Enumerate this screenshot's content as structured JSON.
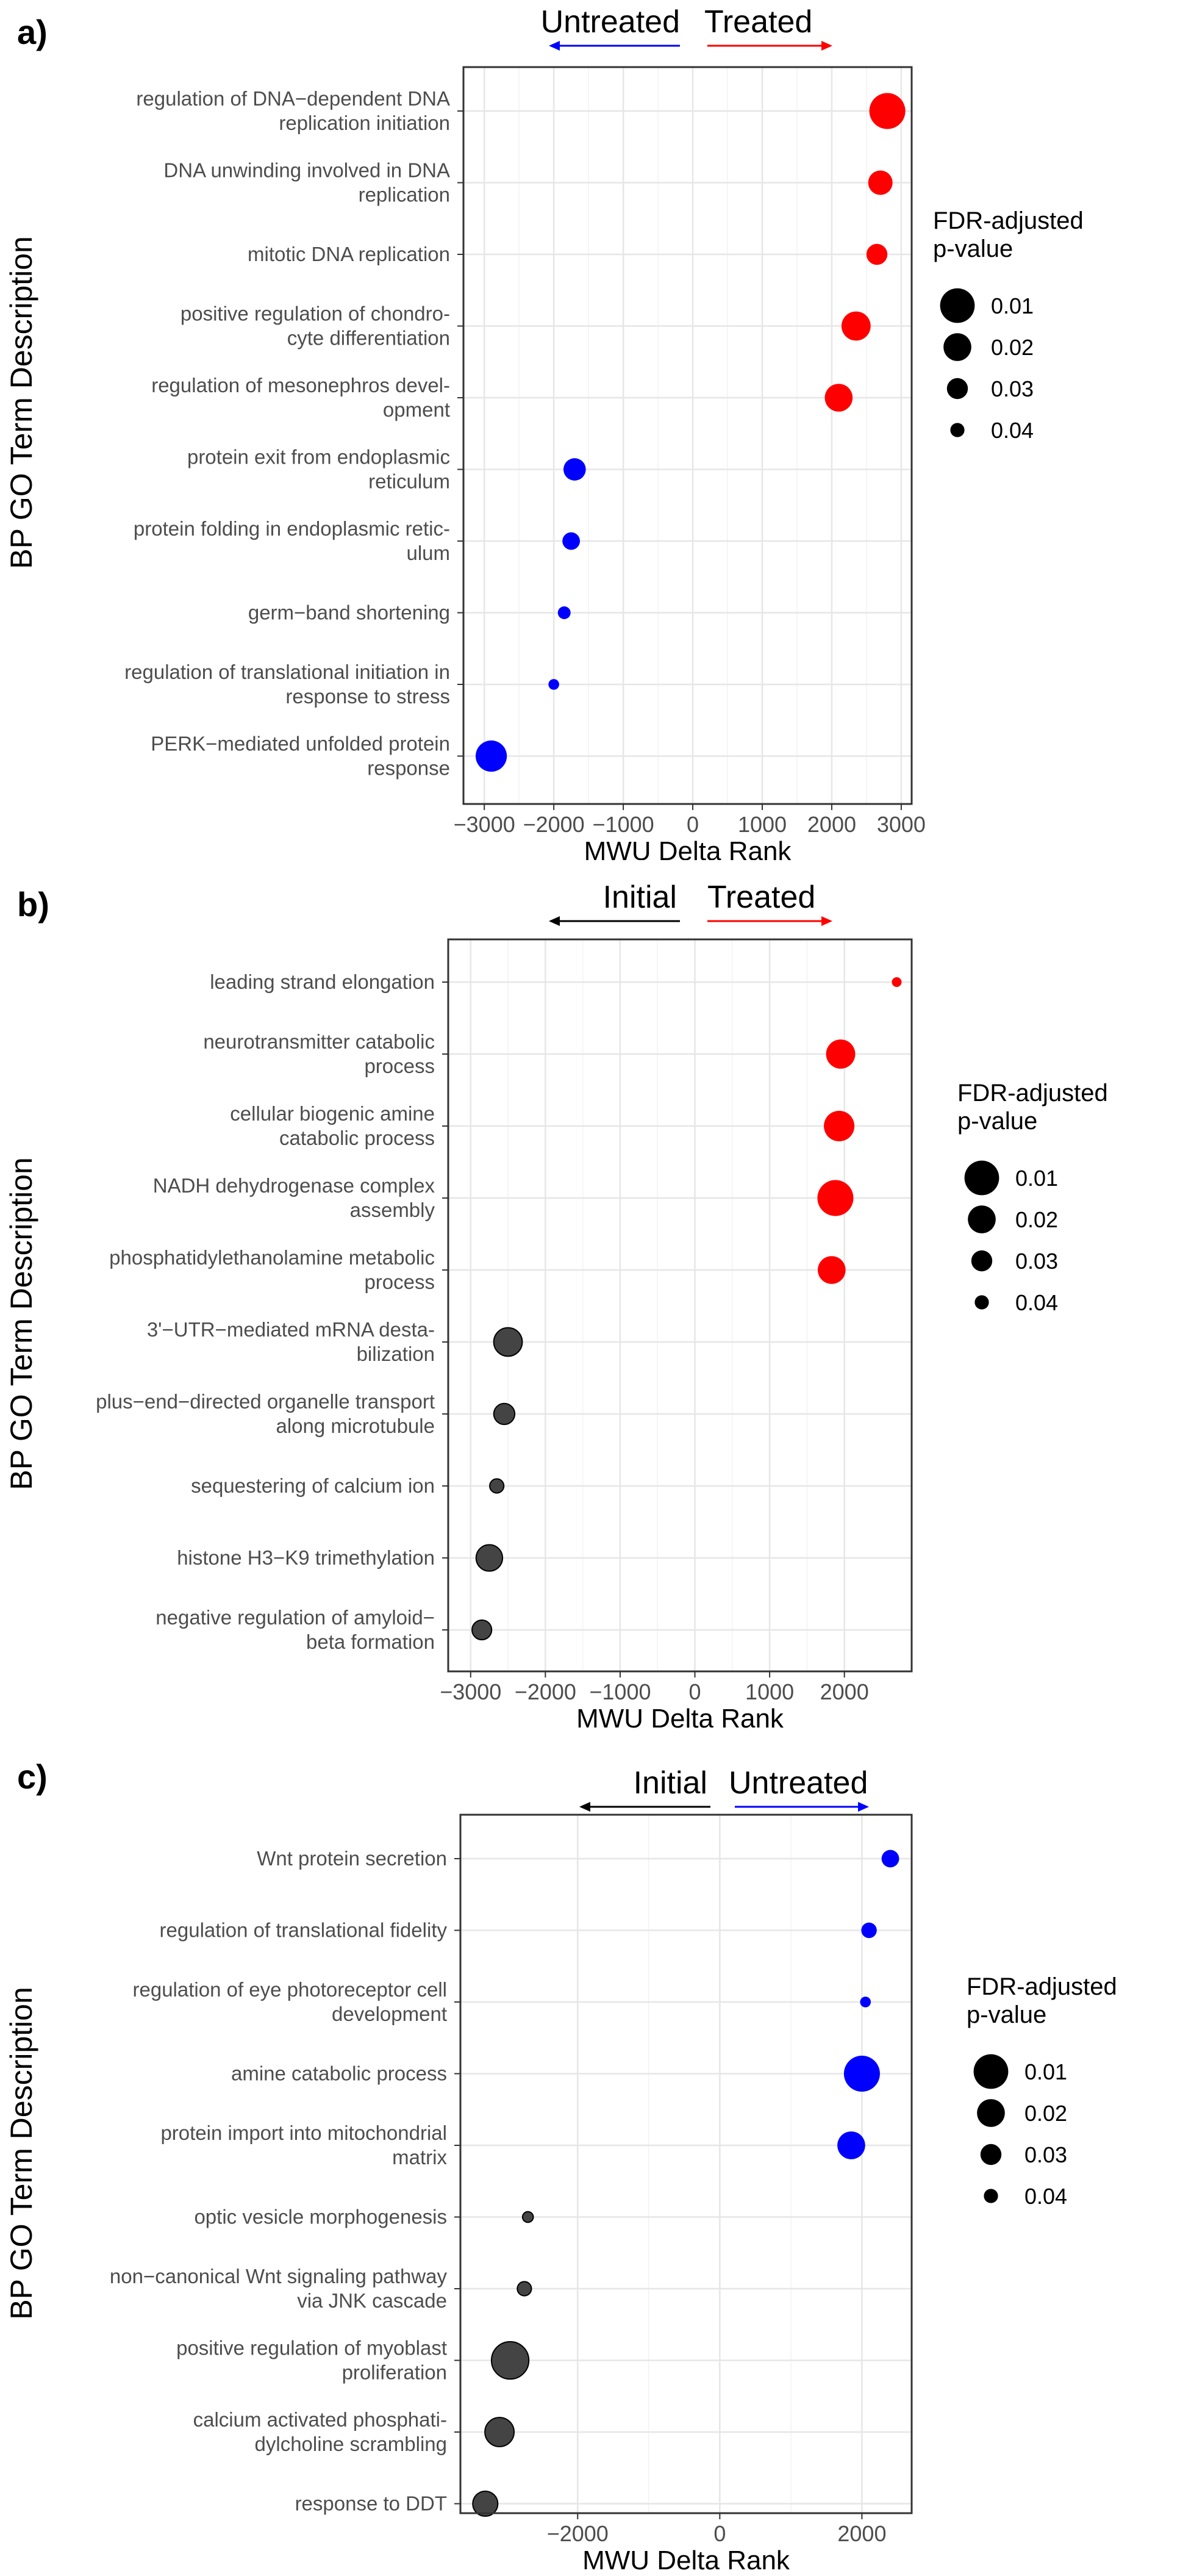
{
  "chart_data": [
    {
      "panel": "a)",
      "type": "scatter",
      "ylabel": "BP GO Term Description",
      "xlabel": "MWU Delta Rank",
      "direction_left": "Untreated",
      "direction_right": "Treated",
      "xlim": [
        -3300,
        3150
      ],
      "xticks": [
        -3000,
        -2000,
        -1000,
        0,
        1000,
        2000,
        3000
      ],
      "xtick_labels": [
        "−3000",
        "−2000",
        "−1000",
        "0",
        "1000",
        "2000",
        "3000"
      ],
      "legend": {
        "title_lines": [
          "FDR-adjusted",
          "p-value"
        ],
        "values": [
          "0.01",
          "0.02",
          "0.03",
          "0.04"
        ]
      },
      "grid": true,
      "points": [
        {
          "term": [
            "regulation of DNA−dependent DNA",
            "replication initiation"
          ],
          "x": 2800,
          "p": 0.008,
          "color": "#ff0000"
        },
        {
          "term": [
            "DNA unwinding involved in DNA",
            "replication"
          ],
          "x": 2700,
          "p": 0.025,
          "color": "#ff0000"
        },
        {
          "term": [
            "mitotic DNA replication"
          ],
          "x": 2650,
          "p": 0.03,
          "color": "#ff0000"
        },
        {
          "term": [
            "positive regulation of chondro-",
            "cyte differentiation"
          ],
          "x": 2350,
          "p": 0.018,
          "color": "#ff0000"
        },
        {
          "term": [
            "regulation of mesonephros devel-",
            "opment"
          ],
          "x": 2100,
          "p": 0.02,
          "color": "#ff0000"
        },
        {
          "term": [
            "protein exit from endoplasmic",
            "reticulum"
          ],
          "x": -1700,
          "p": 0.028,
          "color": "#0000ff"
        },
        {
          "term": [
            "protein folding in endoplasmic retic-",
            "ulum"
          ],
          "x": -1750,
          "p": 0.035,
          "color": "#0000ff"
        },
        {
          "term": [
            "germ−band shortening"
          ],
          "x": -1850,
          "p": 0.042,
          "color": "#0000ff"
        },
        {
          "term": [
            "regulation of translational initiation in",
            "response to stress"
          ],
          "x": -2000,
          "p": 0.045,
          "color": "#0000ff"
        },
        {
          "term": [
            "PERK−mediated unfolded protein",
            "response"
          ],
          "x": -2900,
          "p": 0.015,
          "color": "#0000ff"
        }
      ]
    },
    {
      "panel": "b)",
      "type": "scatter",
      "ylabel": "BP GO Term Description",
      "xlabel": "MWU Delta Rank",
      "direction_left": "Initial",
      "direction_right": "Treated",
      "xlim": [
        -3300,
        2900
      ],
      "xticks": [
        -3000,
        -2000,
        -1000,
        0,
        1000,
        2000
      ],
      "xtick_labels": [
        "−3000",
        "−2000",
        "−1000",
        "0",
        "1000",
        "2000"
      ],
      "legend": {
        "title_lines": [
          "FDR-adjusted",
          "p-value"
        ],
        "values": [
          "0.01",
          "0.02",
          "0.03",
          "0.04"
        ]
      },
      "grid": true,
      "points": [
        {
          "term": [
            "leading strand elongation"
          ],
          "x": 2700,
          "p": 0.048,
          "color": "#ff0000"
        },
        {
          "term": [
            "neurotransmitter catabolic",
            "process"
          ],
          "x": 1950,
          "p": 0.018,
          "color": "#ff0000"
        },
        {
          "term": [
            "cellular biogenic amine",
            "catabolic process"
          ],
          "x": 1930,
          "p": 0.016,
          "color": "#ff0000"
        },
        {
          "term": [
            "NADH dehydrogenase complex",
            "assembly"
          ],
          "x": 1880,
          "p": 0.008,
          "color": "#ff0000"
        },
        {
          "term": [
            "phosphatidylethanolamine metabolic",
            "process"
          ],
          "x": 1830,
          "p": 0.02,
          "color": "#ff0000"
        },
        {
          "term": [
            "3'−UTR−mediated mRNA desta-",
            "bilization"
          ],
          "x": -2500,
          "p": 0.019,
          "color": "#444444"
        },
        {
          "term": [
            "plus−end−directed organelle transport",
            "along microtubule"
          ],
          "x": -2550,
          "p": 0.03,
          "color": "#444444"
        },
        {
          "term": [
            "sequestering of calcium ion"
          ],
          "x": -2650,
          "p": 0.04,
          "color": "#444444"
        },
        {
          "term": [
            "histone H3−K9 trimethylation"
          ],
          "x": -2750,
          "p": 0.022,
          "color": "#444444"
        },
        {
          "term": [
            "negative regulation of amyloid−",
            "beta formation"
          ],
          "x": -2850,
          "p": 0.032,
          "color": "#444444"
        }
      ]
    },
    {
      "panel": "c)",
      "type": "scatter",
      "ylabel": "BP GO Term Description",
      "xlabel": "MWU Delta Rank",
      "direction_left": "Initial",
      "direction_right": "Untreated",
      "xlim": [
        -3650,
        2700
      ],
      "xticks": [
        -2000,
        0,
        2000
      ],
      "xtick_labels": [
        "−2000",
        "0",
        "2000"
      ],
      "legend": {
        "title_lines": [
          "FDR-adjusted",
          "p-value"
        ],
        "values": [
          "0.01",
          "0.02",
          "0.03",
          "0.04"
        ]
      },
      "grid": true,
      "points": [
        {
          "term": [
            "Wnt protein secretion"
          ],
          "x": 2400,
          "p": 0.035,
          "color": "#0000ff"
        },
        {
          "term": [
            "regulation of translational fidelity"
          ],
          "x": 2100,
          "p": 0.038,
          "color": "#0000ff"
        },
        {
          "term": [
            "regulation of eye photoreceptor cell",
            "development"
          ],
          "x": 2050,
          "p": 0.045,
          "color": "#0000ff"
        },
        {
          "term": [
            "amine catabolic process"
          ],
          "x": 2000,
          "p": 0.008,
          "color": "#0000ff"
        },
        {
          "term": [
            "protein import into mitochondrial",
            "matrix"
          ],
          "x": 1850,
          "p": 0.02,
          "color": "#0000ff"
        },
        {
          "term": [
            "optic vesicle morphogenesis"
          ],
          "x": -2700,
          "p": 0.045,
          "color": "#444444"
        },
        {
          "term": [
            "non−canonical Wnt signaling pathway",
            "via JNK cascade"
          ],
          "x": -2750,
          "p": 0.04,
          "color": "#444444"
        },
        {
          "term": [
            "positive regulation of myoblast",
            "proliferation"
          ],
          "x": -2950,
          "p": 0.006,
          "color": "#444444"
        },
        {
          "term": [
            "calcium activated phosphati-",
            "dylcholine scrambling"
          ],
          "x": -3100,
          "p": 0.018,
          "color": "#444444"
        },
        {
          "term": [
            "response to DDT"
          ],
          "x": -3300,
          "p": 0.024,
          "color": "#444444"
        }
      ]
    }
  ],
  "colors": {
    "left_arrow_a": "#0000ff",
    "right_arrow": "#ff0000",
    "left_arrow_bc": "#000000",
    "right_arrow_c": "#0000ff",
    "legend_dot": "#000000",
    "grid": "#ebebeb"
  }
}
